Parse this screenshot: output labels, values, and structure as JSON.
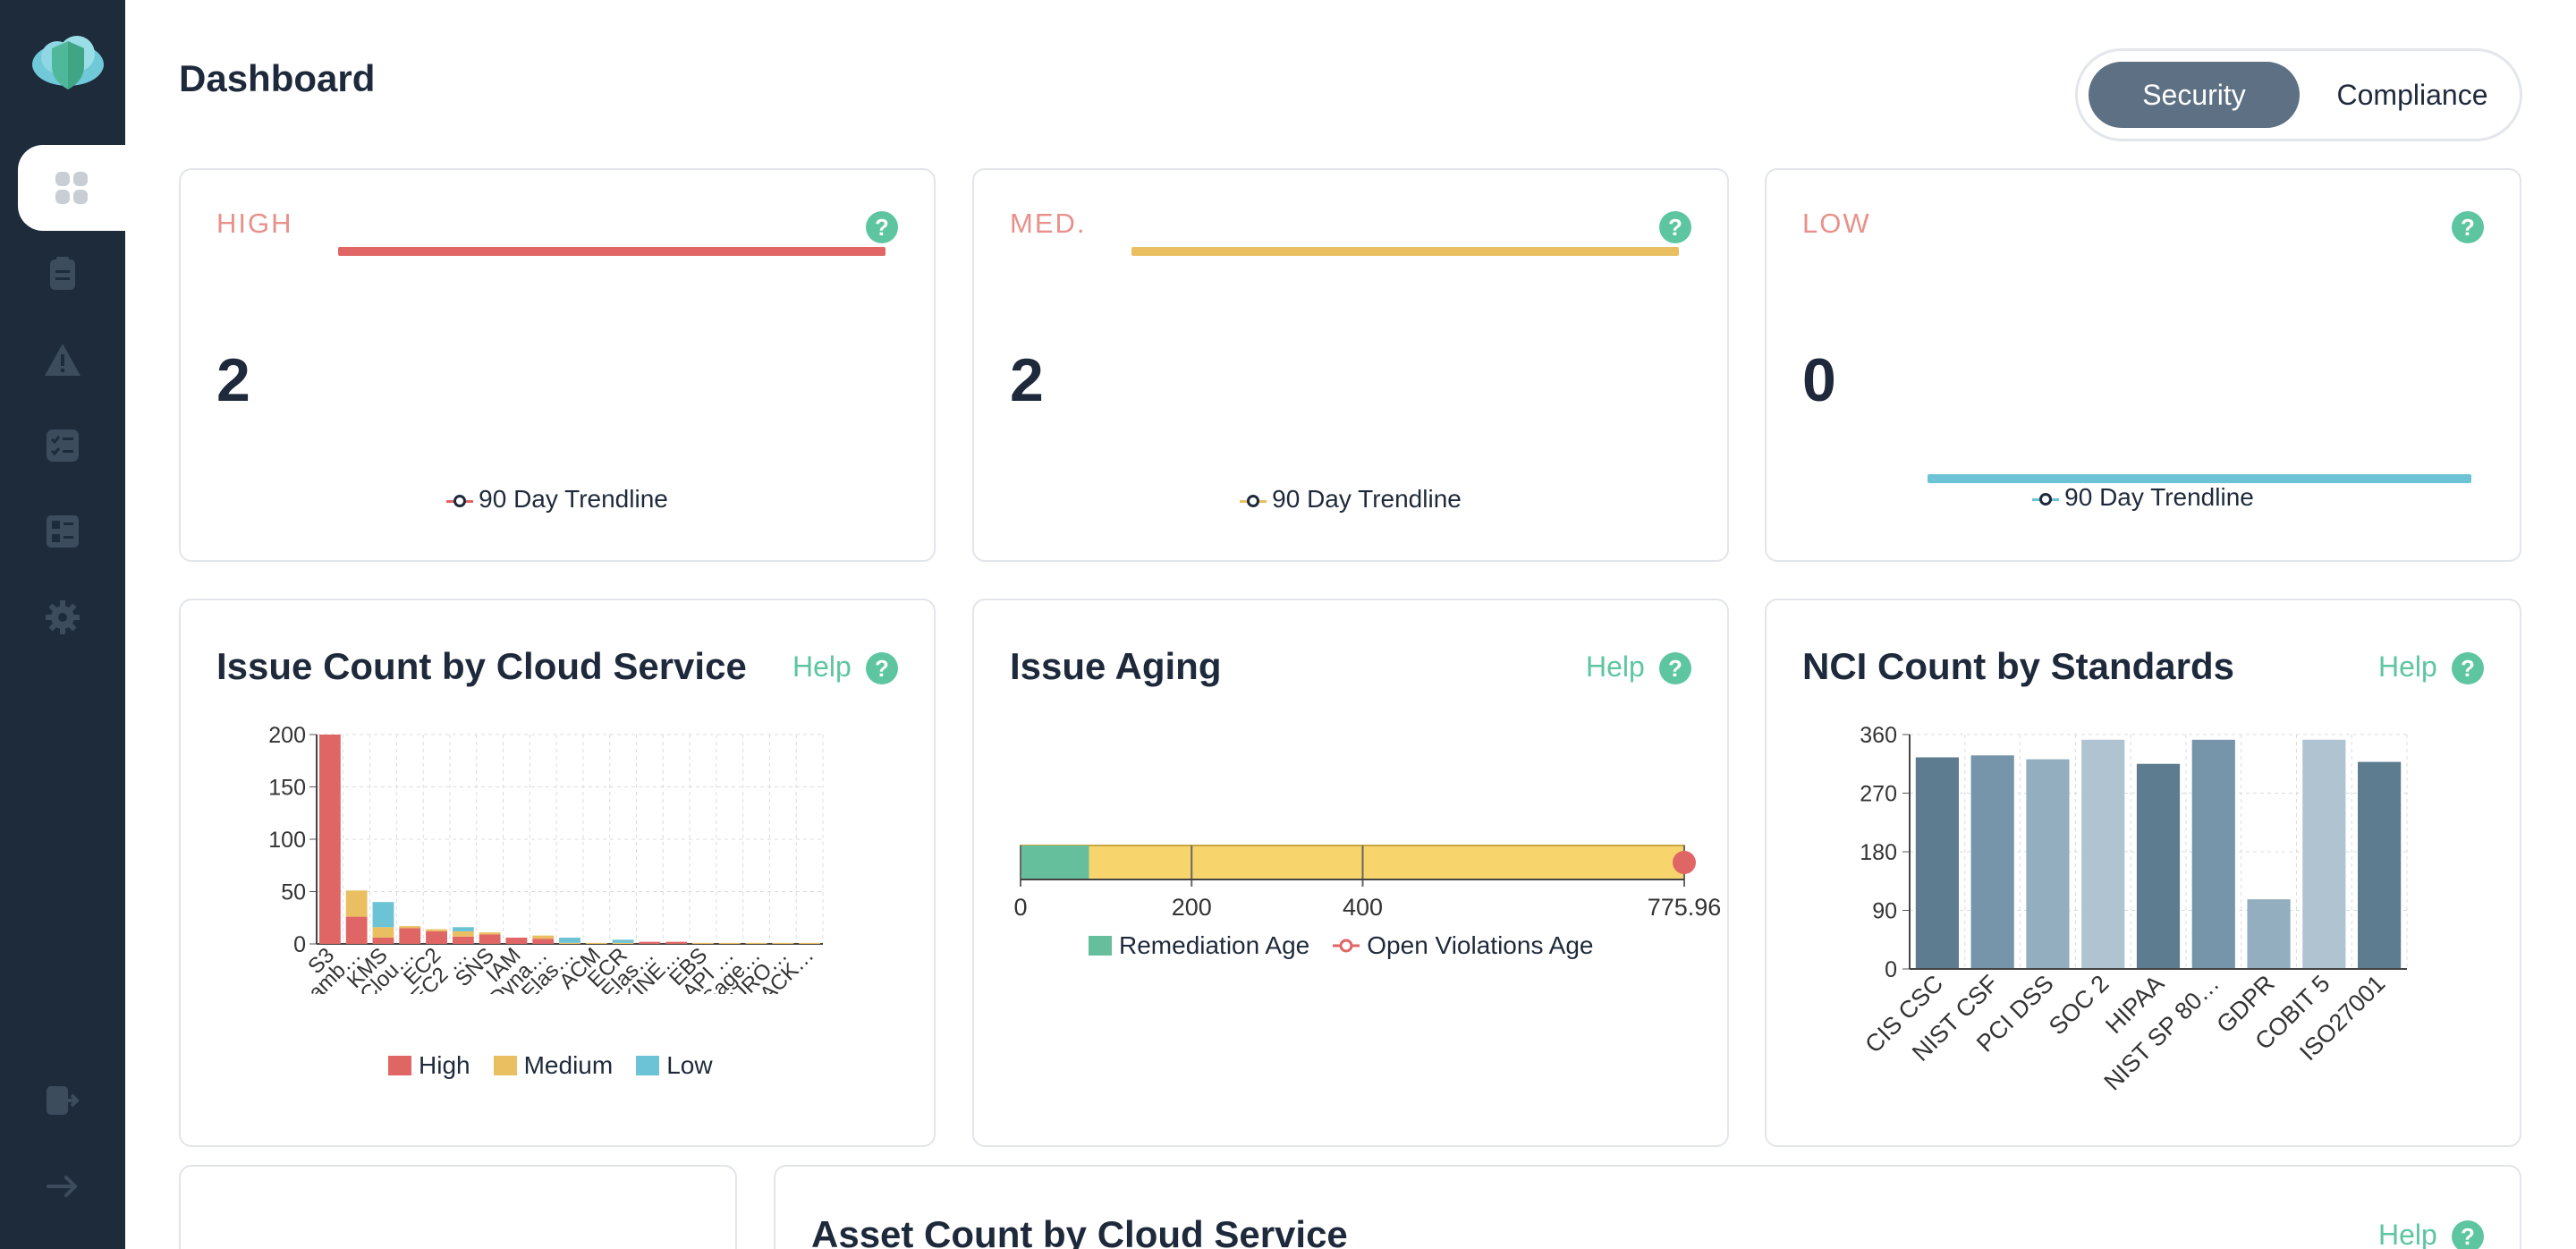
{
  "page": {
    "title": "Dashboard"
  },
  "toggle": {
    "security": "Security",
    "compliance": "Compliance"
  },
  "sidebar": {
    "items": [
      {
        "name": "dashboard-icon",
        "active": true
      },
      {
        "name": "clipboard-icon"
      },
      {
        "name": "warning-icon"
      },
      {
        "name": "checklist-icon"
      },
      {
        "name": "report-icon"
      },
      {
        "name": "settings-icon"
      }
    ],
    "bottom": [
      {
        "name": "logout-icon"
      },
      {
        "name": "expand-arrow-icon"
      }
    ]
  },
  "severity_cards": [
    {
      "label": "HIGH",
      "count": "2",
      "trend": "90 Day Trendline",
      "color": "#e06666"
    },
    {
      "label": "MED.",
      "count": "2",
      "trend": "90 Day Trendline",
      "color": "#eabf62"
    },
    {
      "label": "LOW",
      "count": "0",
      "trend": "90 Day Trendline",
      "color": "#6cc3d5"
    }
  ],
  "issue_count_card": {
    "title": "Issue Count by Cloud Service",
    "help": "Help"
  },
  "issue_aging_card": {
    "title": "Issue Aging",
    "help": "Help"
  },
  "nci_card": {
    "title": "NCI Count by Standards",
    "help": "Help"
  },
  "asset_card": {
    "title": "Asset Count by Cloud Service",
    "help": "Help"
  },
  "colors": {
    "high": "#e06666",
    "medium": "#eabf62",
    "low": "#6cc3d5",
    "accent": "#5dc6a0",
    "sidebar": "#1d2b3b"
  },
  "chart_data": [
    {
      "id": "issue-count",
      "type": "bar",
      "stacked": true,
      "categories": [
        "S3",
        "Lamb…",
        "KMS",
        "Clou…",
        "EC2",
        "EC2 …",
        "SNS",
        "IAM",
        "Dyna…",
        "Elas…",
        "ACM",
        "ECR",
        "Elas…",
        "KINE…",
        "EBS",
        "API …",
        "Sage…",
        "AURO…",
        "BACK…"
      ],
      "series": [
        {
          "name": "High",
          "values": [
            200,
            26,
            6,
            15,
            12,
            7,
            9,
            6,
            5,
            0,
            0,
            0,
            2,
            2,
            0,
            0,
            0,
            0,
            0
          ]
        },
        {
          "name": "Medium",
          "values": [
            0,
            25,
            10,
            2,
            2,
            5,
            2,
            0,
            3,
            1,
            1,
            1,
            0,
            0,
            1,
            1,
            1,
            1,
            1
          ]
        },
        {
          "name": "Low",
          "values": [
            0,
            0,
            24,
            0,
            0,
            4,
            0,
            0,
            0,
            5,
            0,
            3,
            0,
            0,
            0,
            0,
            0,
            0,
            0
          ]
        }
      ],
      "yticks": [
        0,
        50,
        100,
        150,
        200
      ],
      "ylim": [
        0,
        200
      ],
      "grid": true,
      "legend": "bottom"
    },
    {
      "id": "issue-aging",
      "type": "bar",
      "orientation": "horizontal",
      "series": [
        {
          "name": "Remediation Age",
          "values": [
            80
          ]
        },
        {
          "name": "Open Violations Age",
          "values": [
            775.96
          ]
        }
      ],
      "xticks": [
        "0",
        "200",
        "400",
        "775.96"
      ],
      "xlim": [
        0,
        775.96
      ],
      "legend": "bottom"
    },
    {
      "id": "nci-count",
      "type": "bar",
      "categories": [
        "CIS CSC",
        "NIST CSF",
        "PCI DSS",
        "SOC 2",
        "HIPAA",
        "NIST SP 80…",
        "GDPR",
        "COBIT 5",
        "ISO27001"
      ],
      "values": [
        325,
        328,
        322,
        352,
        315,
        352,
        107,
        352,
        318
      ],
      "yticks": [
        0,
        90,
        180,
        270,
        360
      ],
      "ylim": [
        0,
        360
      ],
      "grid": true,
      "colors": [
        "#5e7c8f",
        "#7694aa",
        "#92aebf",
        "#afc3d1",
        "#5e7c8f",
        "#7694aa",
        "#92aebf",
        "#afc3d1",
        "#5e7c8f"
      ]
    }
  ]
}
